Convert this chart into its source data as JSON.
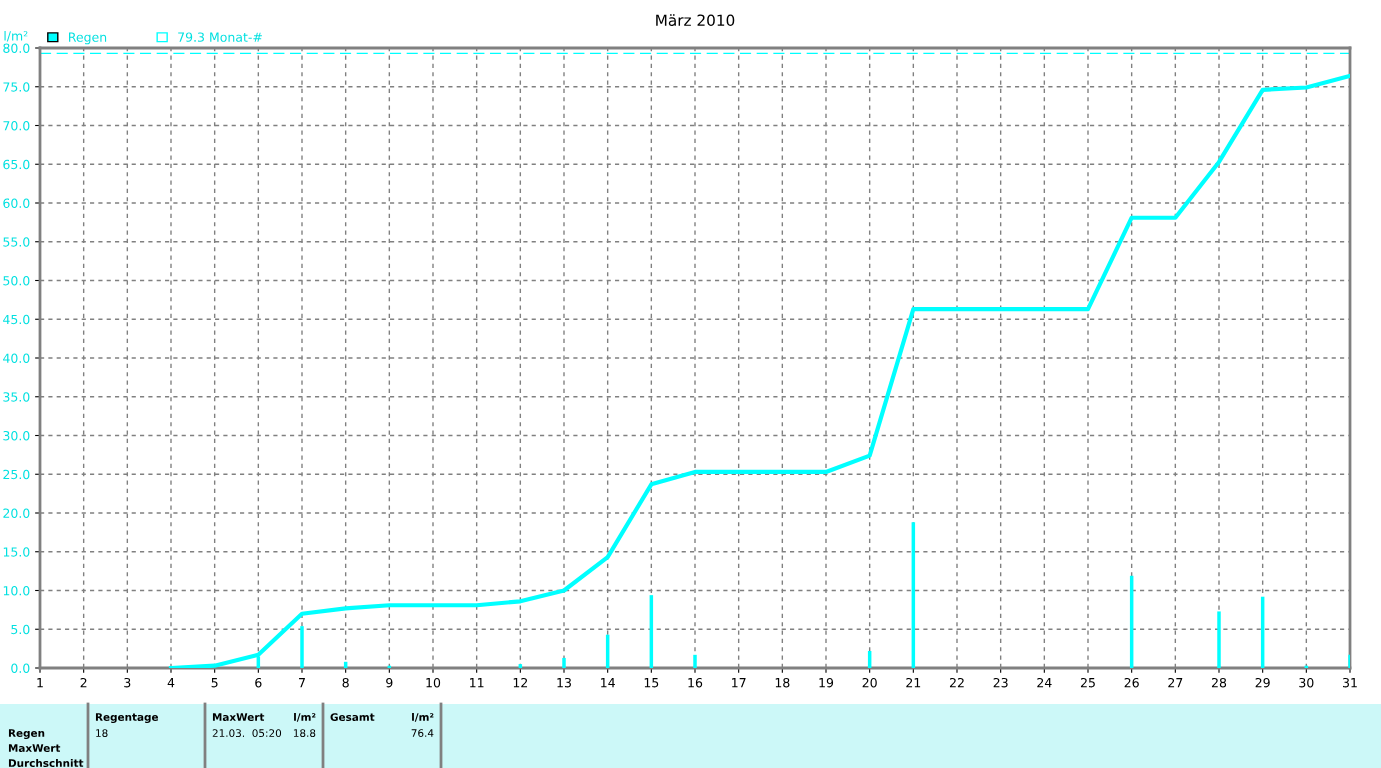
{
  "chart_data": {
    "type": "bar",
    "title": "März 2010",
    "ylabel": "l/m²",
    "series": [
      {
        "name": "Regen",
        "color": "#00ffff",
        "x": [
          6,
          7,
          8,
          9,
          12,
          13,
          14,
          15,
          16,
          20,
          21,
          26,
          28,
          29,
          30,
          31
        ],
        "values": [
          1.5,
          5.4,
          0.8,
          0.3,
          0.5,
          1.3,
          4.3,
          9.4,
          1.7,
          2.2,
          18.8,
          11.9,
          7.3,
          9.2,
          0.3,
          1.7
        ]
      },
      {
        "type": "line",
        "color": "#00ffff",
        "x": [
          4,
          5,
          6,
          7,
          8,
          9,
          10,
          11,
          12,
          13,
          14,
          15,
          16,
          17,
          18,
          19,
          20,
          21,
          22,
          23,
          24,
          25,
          26,
          27,
          28,
          29,
          30,
          31
        ],
        "values": [
          0,
          0.3,
          1.7,
          7.0,
          7.7,
          8.1,
          8.1,
          8.1,
          8.6,
          10.0,
          14.3,
          23.7,
          25.3,
          25.3,
          25.3,
          25.3,
          27.4,
          46.3,
          46.3,
          46.3,
          46.3,
          46.3,
          58.1,
          58.1,
          65.3,
          74.6,
          74.9,
          76.4
        ]
      }
    ],
    "ref_lines": [
      {
        "axis": "y",
        "value": 79.3,
        "label": "79.3 Monat-#",
        "color": "#00ffff",
        "line_style": "dashed"
      }
    ],
    "xlim": [
      1,
      31
    ],
    "xticks": [
      1,
      2,
      3,
      4,
      5,
      6,
      7,
      8,
      9,
      10,
      11,
      12,
      13,
      14,
      15,
      16,
      17,
      18,
      19,
      20,
      21,
      22,
      23,
      24,
      25,
      26,
      27,
      28,
      29,
      30,
      31
    ],
    "ylim": [
      0,
      80
    ],
    "yticks": [
      {
        "value": 0,
        "label": "0.0"
      },
      {
        "value": 5,
        "label": "5.0"
      },
      {
        "value": 10,
        "label": "10.0"
      },
      {
        "value": 15,
        "label": "15.0"
      },
      {
        "value": 20,
        "label": "20.0"
      },
      {
        "value": 25,
        "label": "25.0"
      },
      {
        "value": 30,
        "label": "30.0"
      },
      {
        "value": 35,
        "label": "35.0"
      },
      {
        "value": 40,
        "label": "40.0"
      },
      {
        "value": 45,
        "label": "45.0"
      },
      {
        "value": 50,
        "label": "50.0"
      },
      {
        "value": 55,
        "label": "55.0"
      },
      {
        "value": 60,
        "label": "60.0"
      },
      {
        "value": 65,
        "label": "65.0"
      },
      {
        "value": 70,
        "label": "70.0"
      },
      {
        "value": 75,
        "label": "75.0"
      },
      {
        "value": 80,
        "label": "80.0"
      }
    ],
    "grid": true,
    "legend": "top left",
    "annotations": [
      "Regen",
      "MaxWert",
      "Durchschnitt",
      "Regentage",
      "18",
      "MaxWert",
      "l/m²",
      "21.03.  05:20",
      "18.8",
      "Gesamt",
      "l/m²",
      "76.4"
    ]
  }
}
